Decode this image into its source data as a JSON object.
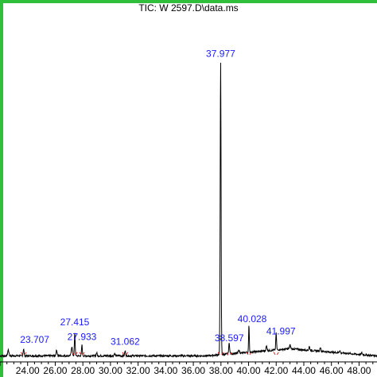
{
  "chart_data": {
    "type": "line",
    "title": "TIC: W 2597.D\\data.ms",
    "xlabel": "",
    "ylabel": "",
    "xlim": [
      22.0,
      49.3
    ],
    "ylim": [
      0,
      1.0
    ],
    "x_ticks": [
      "24.00",
      "26.00",
      "28.00",
      "30.00",
      "32.00",
      "34.00",
      "36.00",
      "38.00",
      "40.00",
      "42.00",
      "44.00",
      "46.00",
      "48.00"
    ],
    "x_tick_values": [
      24,
      26,
      28,
      30,
      32,
      34,
      36,
      38,
      40,
      42,
      44,
      46,
      48
    ],
    "grid": false,
    "series": [
      {
        "color": "#000000",
        "baseline": 0.02,
        "peaks": [
          {
            "x": 22.6,
            "height": 0.02,
            "width": 0.06
          },
          {
            "x": 23.707,
            "height": 0.022,
            "width": 0.05,
            "label": "23.707"
          },
          {
            "x": 26.1,
            "height": 0.018,
            "width": 0.06
          },
          {
            "x": 27.2,
            "height": 0.03,
            "width": 0.06
          },
          {
            "x": 27.415,
            "height": 0.075,
            "width": 0.04,
            "label": "27.415"
          },
          {
            "x": 27.933,
            "height": 0.036,
            "width": 0.04,
            "label": "27.933"
          },
          {
            "x": 29.0,
            "height": 0.01,
            "width": 0.05
          },
          {
            "x": 30.3,
            "height": 0.008,
            "width": 0.05
          },
          {
            "x": 31.062,
            "height": 0.016,
            "width": 0.05,
            "label": "31.062"
          },
          {
            "x": 37.977,
            "height": 0.965,
            "width": 0.045,
            "label": "37.977"
          },
          {
            "x": 38.597,
            "height": 0.035,
            "width": 0.05,
            "label": "38.597"
          },
          {
            "x": 39.3,
            "height": 0.01,
            "width": 0.06
          },
          {
            "x": 40.028,
            "height": 0.09,
            "width": 0.035,
            "label": "40.028"
          },
          {
            "x": 41.3,
            "height": 0.015,
            "width": 0.06
          },
          {
            "x": 41.997,
            "height": 0.055,
            "width": 0.04,
            "label": "41.997"
          },
          {
            "x": 43.0,
            "height": 0.012,
            "width": 0.06
          },
          {
            "x": 44.4,
            "height": 0.012,
            "width": 0.05
          },
          {
            "x": 45.2,
            "height": 0.014,
            "width": 0.05
          },
          {
            "x": 46.6,
            "height": 0.008,
            "width": 0.05
          },
          {
            "x": 48.2,
            "height": 0.006,
            "width": 0.05
          }
        ],
        "hump": {
          "start": 37.0,
          "peak": 43.0,
          "end": 49.3,
          "height": 0.026
        }
      }
    ],
    "annotation_color": "#1a1aff",
    "integration_marker_color": "#e02020"
  }
}
